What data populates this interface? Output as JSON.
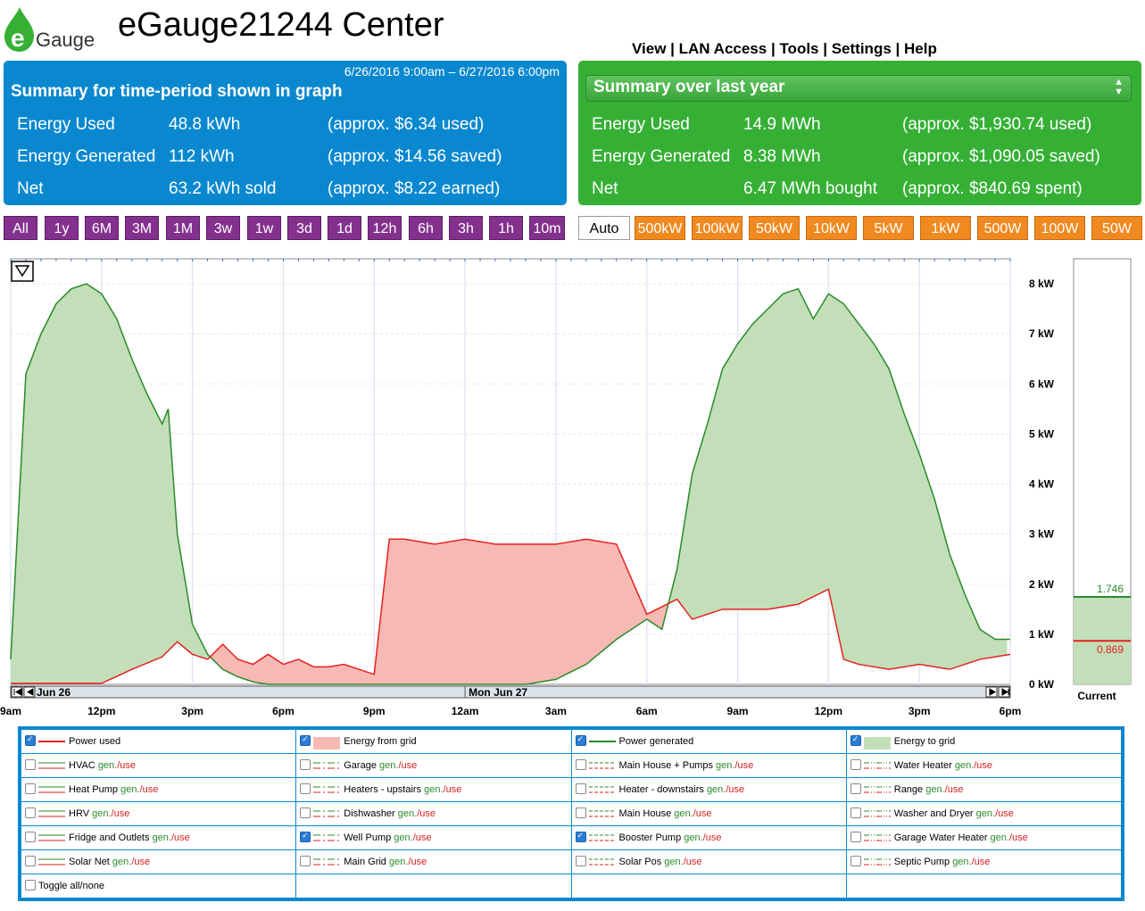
{
  "header": {
    "logo_text": "Gauge",
    "title": "eGauge21244 Center",
    "nav": [
      "View",
      "LAN Access",
      "Tools",
      "Settings",
      "Help"
    ],
    "nav_sep": " | "
  },
  "summary_period": {
    "range": "6/26/2016 9:00am – 6/27/2016 6:00pm",
    "heading": "Summary for time-period shown in graph",
    "rows": [
      {
        "label": "Energy Used",
        "value": "48.8 kWh",
        "cost": "(approx. $6.34 used)"
      },
      {
        "label": "Energy Generated",
        "value": "112 kWh",
        "cost": "(approx. $14.56 saved)"
      },
      {
        "label": "Net",
        "value": "63.2 kWh sold",
        "cost": "(approx. $8.22 earned)"
      }
    ]
  },
  "summary_year": {
    "selected": "Summary over last year",
    "rows": [
      {
        "label": "Energy Used",
        "value": "14.9 MWh",
        "cost": "(approx. $1,930.74 used)"
      },
      {
        "label": "Energy Generated",
        "value": "8.38 MWh",
        "cost": "(approx. $1,090.05 saved)"
      },
      {
        "label": "Net",
        "value": "6.47 MWh bought",
        "cost": "(approx. $840.69 spent)"
      }
    ]
  },
  "range_buttons": [
    "All",
    "1y",
    "6M",
    "3M",
    "1M",
    "3w",
    "1w",
    "3d",
    "1d",
    "12h",
    "6h",
    "3h",
    "1h",
    "10m"
  ],
  "scale_buttons": [
    "Auto",
    "500kW",
    "100kW",
    "50kW",
    "10kW",
    "5kW",
    "1kW",
    "500W",
    "100W",
    "50W"
  ],
  "colors": {
    "used": "#e82020",
    "grid_fill": "#f7b9b3",
    "generated": "#2a8a2a",
    "gen_fill": "#c2dfb9",
    "accent_blue": "#0a88cf",
    "accent_green": "#35b035",
    "purple": "#84318e",
    "orange": "#f08a20"
  },
  "chart_data": {
    "type": "area",
    "ylabel": "",
    "y_ticks": [
      "0 kW",
      "1 kW",
      "2 kW",
      "3 kW",
      "4 kW",
      "5 kW",
      "6 kW",
      "7 kW",
      "8 kW"
    ],
    "ylim": [
      0,
      8.5
    ],
    "x_ticks": [
      "9am",
      "12pm",
      "3pm",
      "6pm",
      "9pm",
      "12am",
      "3am",
      "6am",
      "9am",
      "12pm",
      "3pm",
      "6pm"
    ],
    "x_unit": "hours since 6/26 9am",
    "date_labels": [
      "Jun 26",
      "Mon Jun 27"
    ],
    "current_label": "Current",
    "current_values": {
      "generated": "1.746",
      "used": "0.869"
    },
    "series": [
      {
        "name": "Power generated",
        "x": [
          0,
          0.5,
          1,
          1.5,
          2,
          2.5,
          3,
          3.5,
          4,
          4.5,
          5,
          5.2,
          5.5,
          6,
          6.5,
          7,
          7.5,
          8,
          8.5,
          9,
          9.5,
          10,
          11,
          12,
          13,
          14,
          15,
          16,
          17,
          18,
          19,
          20,
          21,
          21.5,
          22,
          22.5,
          23,
          23.5,
          24,
          24.5,
          25,
          25.5,
          26,
          26.5,
          27,
          27.5,
          28,
          28.5,
          29,
          29.5,
          30,
          30.5,
          31,
          31.5,
          32,
          32.5,
          33
        ],
        "values": [
          0.5,
          6.2,
          7.0,
          7.6,
          7.9,
          8.0,
          7.8,
          7.3,
          6.5,
          5.8,
          5.2,
          5.5,
          3.0,
          1.2,
          0.6,
          0.3,
          0.15,
          0.05,
          0,
          0,
          0,
          0,
          0,
          0,
          0,
          0,
          0,
          0,
          0,
          0.1,
          0.4,
          0.9,
          1.3,
          1.1,
          2.3,
          4.2,
          5.2,
          6.3,
          6.8,
          7.2,
          7.5,
          7.8,
          7.9,
          7.3,
          7.8,
          7.6,
          7.2,
          6.8,
          6.3,
          5.4,
          4.6,
          3.7,
          2.6,
          1.8,
          1.1,
          0.9,
          0.9
        ]
      },
      {
        "name": "Power used",
        "x": [
          0,
          1,
          2,
          3,
          4,
          5,
          5.5,
          6,
          6.5,
          7,
          7.5,
          8,
          8.5,
          9,
          9.5,
          10,
          10.5,
          11,
          11.5,
          12,
          12.5,
          13,
          14,
          15,
          16,
          17,
          18,
          19,
          20,
          21,
          22,
          22.5,
          23,
          23.5,
          24,
          25,
          26,
          27,
          27.5,
          28,
          29,
          30,
          31,
          32,
          33
        ],
        "values": [
          0.02,
          0.02,
          0.02,
          0.02,
          0.3,
          0.55,
          0.85,
          0.6,
          0.5,
          0.8,
          0.5,
          0.4,
          0.6,
          0.4,
          0.5,
          0.35,
          0.35,
          0.4,
          0.3,
          0.2,
          2.9,
          2.9,
          2.8,
          2.9,
          2.8,
          2.8,
          2.8,
          2.9,
          2.8,
          1.4,
          1.7,
          1.3,
          1.4,
          1.5,
          1.5,
          1.5,
          1.6,
          1.9,
          0.5,
          0.4,
          0.3,
          0.4,
          0.3,
          0.5,
          0.6
        ]
      }
    ]
  },
  "legend": {
    "gen_text": "gen.",
    "use_text": "/use",
    "rows": [
      [
        {
          "label": "Power used",
          "checked": true,
          "style": "used",
          "genuse": false
        },
        {
          "label": "Energy from grid",
          "checked": true,
          "style": "gridfill",
          "genuse": false
        },
        {
          "label": "Power generated",
          "checked": true,
          "style": "gen",
          "genuse": false
        },
        {
          "label": "Energy to grid",
          "checked": true,
          "style": "genfill",
          "genuse": false
        }
      ],
      [
        {
          "label": "HVAC",
          "checked": false,
          "style": "a",
          "genuse": true
        },
        {
          "label": "Garage",
          "checked": false,
          "style": "b",
          "genuse": true
        },
        {
          "label": "Main House + Pumps",
          "checked": false,
          "style": "c",
          "genuse": true
        },
        {
          "label": "Water Heater",
          "checked": false,
          "style": "d",
          "genuse": true
        }
      ],
      [
        {
          "label": "Heat Pump",
          "checked": false,
          "style": "a",
          "genuse": true
        },
        {
          "label": "Heaters - upstairs",
          "checked": false,
          "style": "b",
          "genuse": true
        },
        {
          "label": "Heater - downstairs",
          "checked": false,
          "style": "c",
          "genuse": true
        },
        {
          "label": "Range",
          "checked": false,
          "style": "d",
          "genuse": true
        }
      ],
      [
        {
          "label": "HRV",
          "checked": false,
          "style": "a",
          "genuse": true
        },
        {
          "label": "Dishwasher",
          "checked": false,
          "style": "b",
          "genuse": true
        },
        {
          "label": "Main House",
          "checked": false,
          "style": "c",
          "genuse": true
        },
        {
          "label": "Washer and Dryer",
          "checked": false,
          "style": "d",
          "genuse": true
        }
      ],
      [
        {
          "label": "Fridge and Outlets",
          "checked": false,
          "style": "a",
          "genuse": true
        },
        {
          "label": "Well Pump",
          "checked": true,
          "style": "b",
          "genuse": true
        },
        {
          "label": "Booster Pump",
          "checked": true,
          "style": "c",
          "genuse": true
        },
        {
          "label": "Garage Water Heater",
          "checked": false,
          "style": "d",
          "genuse": true
        }
      ],
      [
        {
          "label": "Solar Net",
          "checked": false,
          "style": "a",
          "genuse": true
        },
        {
          "label": "Main Grid",
          "checked": false,
          "style": "b",
          "genuse": true
        },
        {
          "label": "Solar Pos",
          "checked": false,
          "style": "c",
          "genuse": true
        },
        {
          "label": "Septic Pump",
          "checked": false,
          "style": "d",
          "genuse": true
        }
      ],
      [
        {
          "label": "Toggle all/none",
          "checked": false,
          "style": "none",
          "genuse": false
        },
        null,
        null,
        null
      ]
    ]
  }
}
